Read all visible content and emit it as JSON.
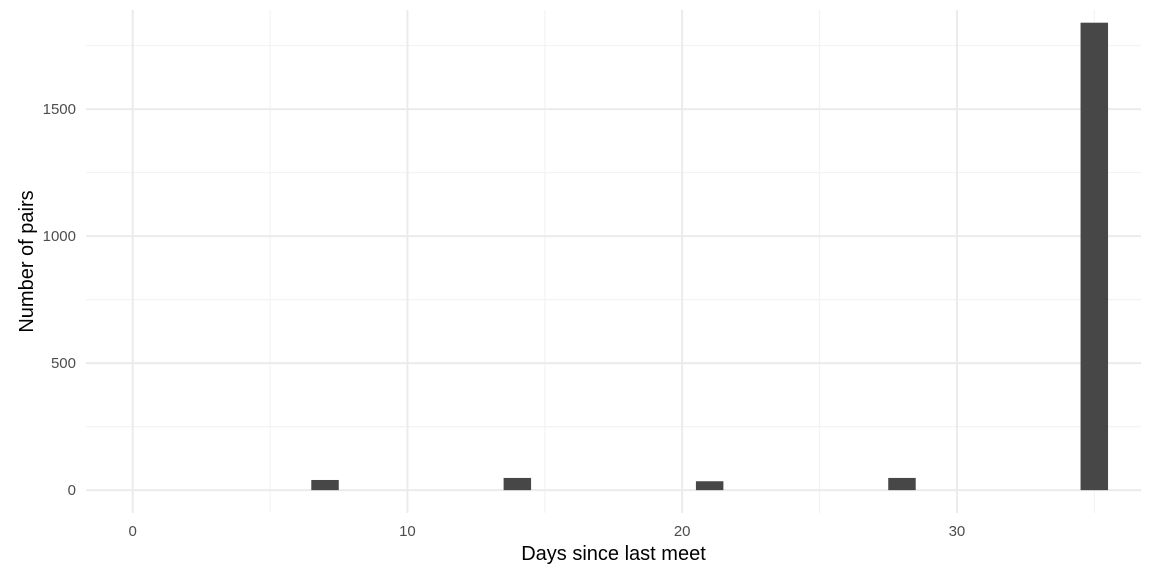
{
  "chart_data": {
    "type": "bar",
    "title": "",
    "xlabel": "Days since last meet",
    "ylabel": "Number of pairs",
    "xlim": [
      -1.7,
      36.7
    ],
    "ylim": [
      -90,
      1890
    ],
    "x_ticks": [
      0,
      10,
      20,
      30
    ],
    "x_minor_ticks": [
      5,
      15,
      25,
      35
    ],
    "y_ticks": [
      0,
      500,
      1000,
      1500
    ],
    "y_minor_ticks": [
      250,
      750,
      1250,
      1750
    ],
    "bin_width": 1,
    "grid": true,
    "bar_color": "#474747",
    "x": [
      7,
      14,
      21,
      28,
      35
    ],
    "values": [
      40,
      48,
      35,
      48,
      1840
    ]
  }
}
